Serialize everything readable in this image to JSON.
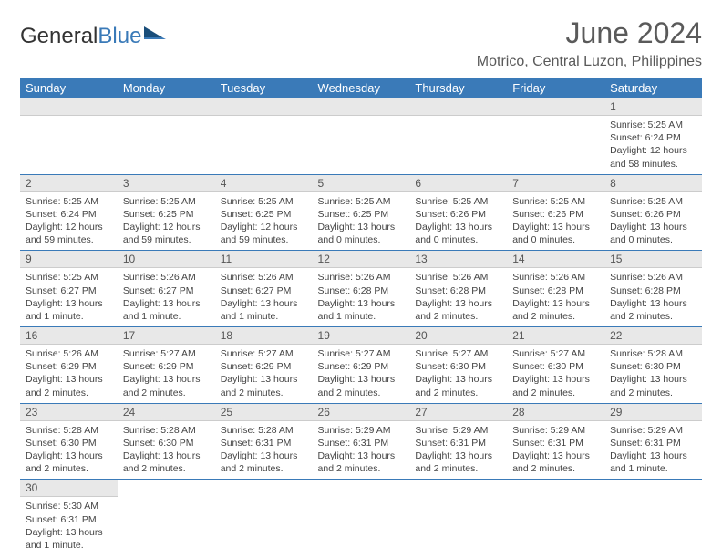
{
  "logo": {
    "text1": "General",
    "text2": "Blue"
  },
  "title": "June 2024",
  "location": "Motrico, Central Luzon, Philippines",
  "colors": {
    "accent": "#3a7ab8",
    "header_bg": "#3a7ab8",
    "daynum_bg": "#e8e8e8"
  },
  "weekdays": [
    "Sunday",
    "Monday",
    "Tuesday",
    "Wednesday",
    "Thursday",
    "Friday",
    "Saturday"
  ],
  "weeks": [
    [
      {
        "empty": true
      },
      {
        "empty": true
      },
      {
        "empty": true
      },
      {
        "empty": true
      },
      {
        "empty": true
      },
      {
        "empty": true
      },
      {
        "d": "1",
        "sr": "Sunrise: 5:25 AM",
        "ss": "Sunset: 6:24 PM",
        "dl1": "Daylight: 12 hours",
        "dl2": "and 58 minutes."
      }
    ],
    [
      {
        "d": "2",
        "sr": "Sunrise: 5:25 AM",
        "ss": "Sunset: 6:24 PM",
        "dl1": "Daylight: 12 hours",
        "dl2": "and 59 minutes."
      },
      {
        "d": "3",
        "sr": "Sunrise: 5:25 AM",
        "ss": "Sunset: 6:25 PM",
        "dl1": "Daylight: 12 hours",
        "dl2": "and 59 minutes."
      },
      {
        "d": "4",
        "sr": "Sunrise: 5:25 AM",
        "ss": "Sunset: 6:25 PM",
        "dl1": "Daylight: 12 hours",
        "dl2": "and 59 minutes."
      },
      {
        "d": "5",
        "sr": "Sunrise: 5:25 AM",
        "ss": "Sunset: 6:25 PM",
        "dl1": "Daylight: 13 hours",
        "dl2": "and 0 minutes."
      },
      {
        "d": "6",
        "sr": "Sunrise: 5:25 AM",
        "ss": "Sunset: 6:26 PM",
        "dl1": "Daylight: 13 hours",
        "dl2": "and 0 minutes."
      },
      {
        "d": "7",
        "sr": "Sunrise: 5:25 AM",
        "ss": "Sunset: 6:26 PM",
        "dl1": "Daylight: 13 hours",
        "dl2": "and 0 minutes."
      },
      {
        "d": "8",
        "sr": "Sunrise: 5:25 AM",
        "ss": "Sunset: 6:26 PM",
        "dl1": "Daylight: 13 hours",
        "dl2": "and 0 minutes."
      }
    ],
    [
      {
        "d": "9",
        "sr": "Sunrise: 5:25 AM",
        "ss": "Sunset: 6:27 PM",
        "dl1": "Daylight: 13 hours",
        "dl2": "and 1 minute."
      },
      {
        "d": "10",
        "sr": "Sunrise: 5:26 AM",
        "ss": "Sunset: 6:27 PM",
        "dl1": "Daylight: 13 hours",
        "dl2": "and 1 minute."
      },
      {
        "d": "11",
        "sr": "Sunrise: 5:26 AM",
        "ss": "Sunset: 6:27 PM",
        "dl1": "Daylight: 13 hours",
        "dl2": "and 1 minute."
      },
      {
        "d": "12",
        "sr": "Sunrise: 5:26 AM",
        "ss": "Sunset: 6:28 PM",
        "dl1": "Daylight: 13 hours",
        "dl2": "and 1 minute."
      },
      {
        "d": "13",
        "sr": "Sunrise: 5:26 AM",
        "ss": "Sunset: 6:28 PM",
        "dl1": "Daylight: 13 hours",
        "dl2": "and 2 minutes."
      },
      {
        "d": "14",
        "sr": "Sunrise: 5:26 AM",
        "ss": "Sunset: 6:28 PM",
        "dl1": "Daylight: 13 hours",
        "dl2": "and 2 minutes."
      },
      {
        "d": "15",
        "sr": "Sunrise: 5:26 AM",
        "ss": "Sunset: 6:28 PM",
        "dl1": "Daylight: 13 hours",
        "dl2": "and 2 minutes."
      }
    ],
    [
      {
        "d": "16",
        "sr": "Sunrise: 5:26 AM",
        "ss": "Sunset: 6:29 PM",
        "dl1": "Daylight: 13 hours",
        "dl2": "and 2 minutes."
      },
      {
        "d": "17",
        "sr": "Sunrise: 5:27 AM",
        "ss": "Sunset: 6:29 PM",
        "dl1": "Daylight: 13 hours",
        "dl2": "and 2 minutes."
      },
      {
        "d": "18",
        "sr": "Sunrise: 5:27 AM",
        "ss": "Sunset: 6:29 PM",
        "dl1": "Daylight: 13 hours",
        "dl2": "and 2 minutes."
      },
      {
        "d": "19",
        "sr": "Sunrise: 5:27 AM",
        "ss": "Sunset: 6:29 PM",
        "dl1": "Daylight: 13 hours",
        "dl2": "and 2 minutes."
      },
      {
        "d": "20",
        "sr": "Sunrise: 5:27 AM",
        "ss": "Sunset: 6:30 PM",
        "dl1": "Daylight: 13 hours",
        "dl2": "and 2 minutes."
      },
      {
        "d": "21",
        "sr": "Sunrise: 5:27 AM",
        "ss": "Sunset: 6:30 PM",
        "dl1": "Daylight: 13 hours",
        "dl2": "and 2 minutes."
      },
      {
        "d": "22",
        "sr": "Sunrise: 5:28 AM",
        "ss": "Sunset: 6:30 PM",
        "dl1": "Daylight: 13 hours",
        "dl2": "and 2 minutes."
      }
    ],
    [
      {
        "d": "23",
        "sr": "Sunrise: 5:28 AM",
        "ss": "Sunset: 6:30 PM",
        "dl1": "Daylight: 13 hours",
        "dl2": "and 2 minutes."
      },
      {
        "d": "24",
        "sr": "Sunrise: 5:28 AM",
        "ss": "Sunset: 6:30 PM",
        "dl1": "Daylight: 13 hours",
        "dl2": "and 2 minutes."
      },
      {
        "d": "25",
        "sr": "Sunrise: 5:28 AM",
        "ss": "Sunset: 6:31 PM",
        "dl1": "Daylight: 13 hours",
        "dl2": "and 2 minutes."
      },
      {
        "d": "26",
        "sr": "Sunrise: 5:29 AM",
        "ss": "Sunset: 6:31 PM",
        "dl1": "Daylight: 13 hours",
        "dl2": "and 2 minutes."
      },
      {
        "d": "27",
        "sr": "Sunrise: 5:29 AM",
        "ss": "Sunset: 6:31 PM",
        "dl1": "Daylight: 13 hours",
        "dl2": "and 2 minutes."
      },
      {
        "d": "28",
        "sr": "Sunrise: 5:29 AM",
        "ss": "Sunset: 6:31 PM",
        "dl1": "Daylight: 13 hours",
        "dl2": "and 2 minutes."
      },
      {
        "d": "29",
        "sr": "Sunrise: 5:29 AM",
        "ss": "Sunset: 6:31 PM",
        "dl1": "Daylight: 13 hours",
        "dl2": "and 1 minute."
      }
    ],
    [
      {
        "d": "30",
        "sr": "Sunrise: 5:30 AM",
        "ss": "Sunset: 6:31 PM",
        "dl1": "Daylight: 13 hours",
        "dl2": "and 1 minute."
      },
      {
        "empty": true
      },
      {
        "empty": true
      },
      {
        "empty": true
      },
      {
        "empty": true
      },
      {
        "empty": true
      },
      {
        "empty": true
      }
    ]
  ]
}
